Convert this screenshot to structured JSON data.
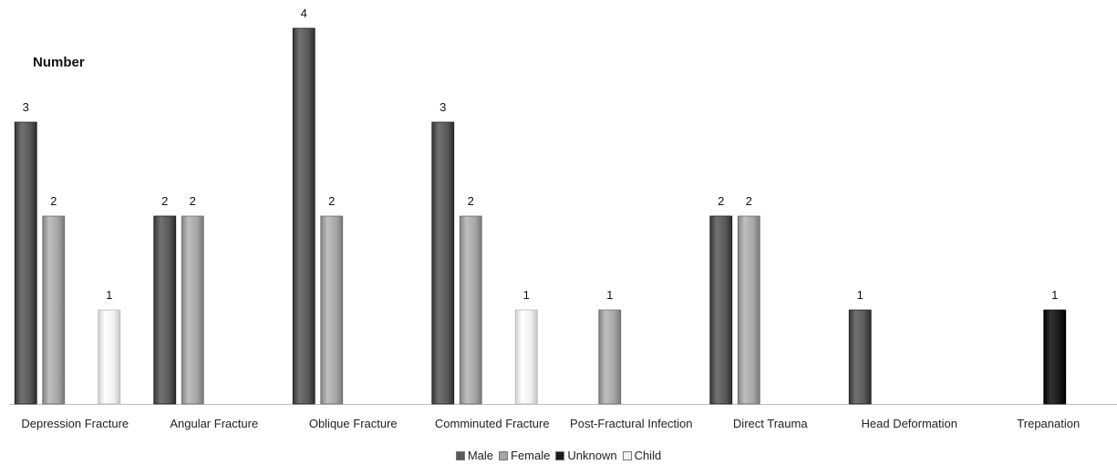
{
  "chart_data": {
    "type": "bar",
    "title": "",
    "xlabel": "",
    "ylabel": "Number",
    "ylim": [
      0,
      4
    ],
    "grid": false,
    "legend_position": "bottom",
    "categories": [
      "Depression Fracture",
      "Angular Fracture",
      "Oblique Fracture",
      "Comminuted Fracture",
      "Post-Fractural Infection",
      "Direct Trauma",
      "Head Deformation",
      "Trepanation"
    ],
    "series": [
      {
        "name": "Male",
        "color": "#595959",
        "values": [
          3,
          2,
          4,
          3,
          null,
          2,
          1,
          null
        ]
      },
      {
        "name": "Female",
        "color": "#a6a6a6",
        "values": [
          2,
          2,
          2,
          2,
          1,
          2,
          null,
          null
        ]
      },
      {
        "name": "Unknown",
        "color": "#1a1a1a",
        "values": [
          null,
          null,
          null,
          null,
          null,
          null,
          null,
          1
        ]
      },
      {
        "name": "Child",
        "color": "#f2f2f2",
        "values": [
          1,
          null,
          null,
          1,
          null,
          null,
          null,
          null
        ]
      }
    ]
  }
}
